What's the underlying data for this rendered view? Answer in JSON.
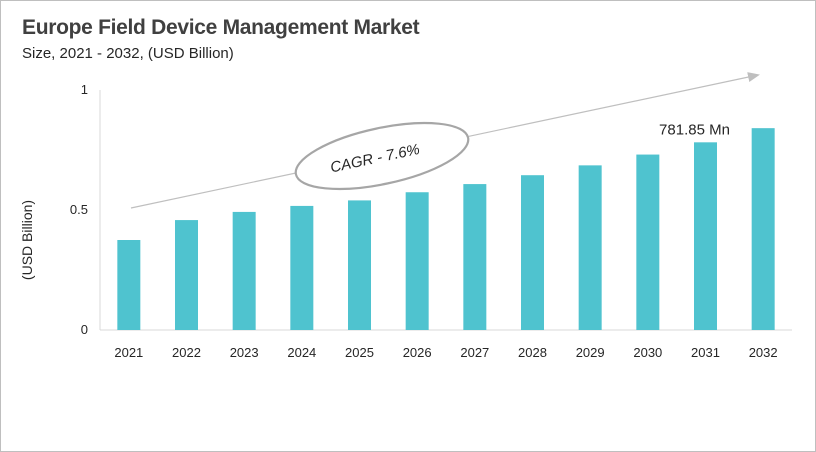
{
  "chart_data": {
    "type": "bar",
    "title": "Europe Field Device Management Market",
    "subtitle": "Size, 2021 - 2032, (USD Billion)",
    "ylabel": "(USD Billion)",
    "xlabel": "",
    "categories": [
      "2021",
      "2022",
      "2023",
      "2024",
      "2025",
      "2026",
      "2027",
      "2028",
      "2029",
      "2030",
      "2031",
      "2032"
    ],
    "values": [
      0.375,
      0.458,
      0.492,
      0.517,
      0.54,
      0.574,
      0.608,
      0.645,
      0.686,
      0.731,
      0.782,
      0.841
    ],
    "ylim": [
      0,
      1
    ],
    "yticks": [
      "0",
      "0.5",
      "1"
    ],
    "grid": false,
    "legend": "none",
    "bar_color": "#4fc3cf",
    "annotations": {
      "value_label": "781.85 Mn",
      "value_label_category": "2031",
      "cagr": "CAGR - 7.6%"
    }
  }
}
